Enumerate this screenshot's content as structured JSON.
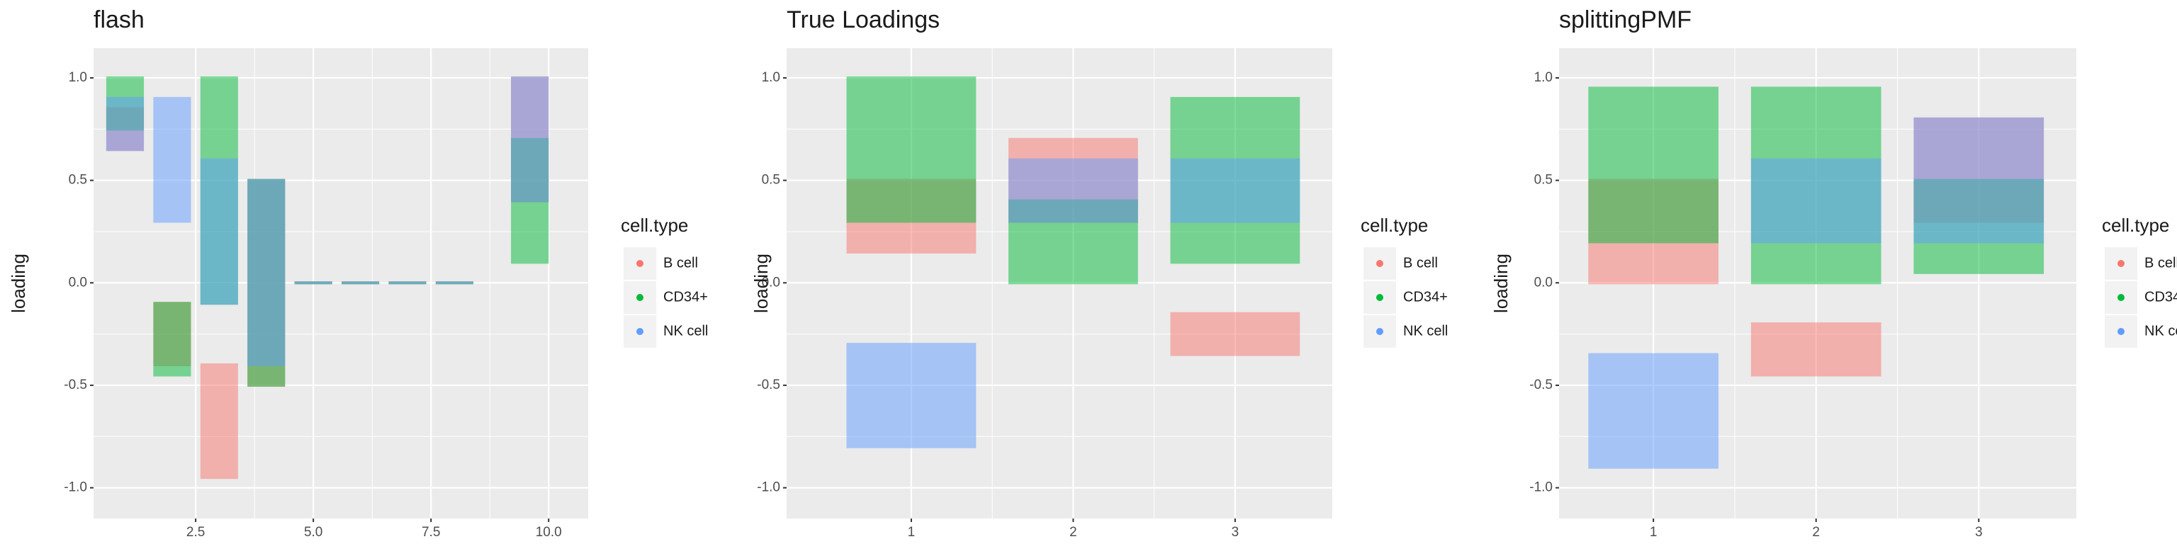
{
  "chart_data": [
    {
      "type": "strip",
      "title": "flash",
      "y_label": "loading",
      "legend_title": "cell.type",
      "xlim": [
        0.33,
        10.84
      ],
      "ylim": [
        -1.15,
        1.145
      ],
      "xticks": [
        2.5,
        {
          "value": 5,
          "label": "5.0"
        },
        7.5,
        {
          "value": 10,
          "label": "10.0"
        }
      ],
      "yticks": [
        {
          "value": -1,
          "label": "-1.0"
        },
        -0.5,
        {
          "value": 0,
          "label": "0.0"
        },
        0.5,
        {
          "value": 1,
          "label": "1.0"
        }
      ],
      "grid": true,
      "series": [
        {
          "name": "B cell",
          "color": "#F8766D",
          "x": [
            1,
            2,
            3,
            4,
            5,
            6,
            7,
            8,
            9.6
          ],
          "ymin": [
            0.65,
            -0.4,
            -0.95,
            -0.5,
            0,
            0,
            0,
            0,
            0.4
          ],
          "ymax": [
            0.85,
            -0.1,
            -0.4,
            0.5,
            0,
            0,
            0,
            0,
            1.0
          ]
        },
        {
          "name": "CD34+",
          "color": "#00BA38",
          "x": [
            1,
            2,
            3,
            4,
            5,
            6,
            7,
            8,
            9.6
          ],
          "ymin": [
            0.75,
            -0.45,
            -0.1,
            -0.5,
            0,
            0,
            0,
            0,
            0.1
          ],
          "ymax": [
            1.0,
            -0.1,
            1.0,
            0.5,
            0,
            0,
            0,
            0,
            0.7
          ]
        },
        {
          "name": "NK cell",
          "color": "#619CFF",
          "x": [
            1,
            2,
            3,
            4,
            5,
            6,
            7,
            8,
            9.6
          ],
          "ymin": [
            0.65,
            0.3,
            -0.1,
            -0.4,
            0,
            0,
            0,
            0,
            0.4
          ],
          "ymax": [
            0.9,
            0.9,
            0.6,
            0.5,
            0,
            0,
            0,
            0,
            1.0
          ]
        }
      ]
    },
    {
      "type": "strip",
      "title": "True Loadings",
      "y_label": "loading",
      "legend_title": "cell.type",
      "xlim": [
        0.23,
        3.6
      ],
      "ylim": [
        -1.15,
        1.145
      ],
      "xticks": [
        1,
        2,
        3
      ],
      "yticks": [
        {
          "value": -1,
          "label": "-1.0"
        },
        -0.5,
        {
          "value": 0,
          "label": "0.0"
        },
        0.5,
        {
          "value": 1,
          "label": "1.0"
        }
      ],
      "grid": true,
      "series": [
        {
          "name": "B cell",
          "color": "#F8766D",
          "x": [
            1,
            2,
            3
          ],
          "ymin": [
            0.15,
            0.3,
            -0.35
          ],
          "ymax": [
            0.5,
            0.7,
            -0.15
          ]
        },
        {
          "name": "CD34+",
          "color": "#00BA38",
          "x": [
            1,
            2,
            3
          ],
          "ymin": [
            0.3,
            0.0,
            0.1
          ],
          "ymax": [
            1.0,
            0.4,
            0.9
          ]
        },
        {
          "name": "NK cell",
          "color": "#619CFF",
          "x": [
            1,
            2,
            3
          ],
          "ymin": [
            -0.8,
            0.3,
            0.3
          ],
          "ymax": [
            -0.3,
            0.6,
            0.6
          ]
        }
      ]
    },
    {
      "type": "strip",
      "title": "splittingPMF",
      "y_label": "loading",
      "legend_title": "cell.type",
      "xlim": [
        0.42,
        3.6
      ],
      "ylim": [
        -1.15,
        1.145
      ],
      "xticks": [
        1,
        2,
        3
      ],
      "yticks": [
        {
          "value": -1,
          "label": "-1.0"
        },
        -0.5,
        {
          "value": 0,
          "label": "0.0"
        },
        0.5,
        {
          "value": 1,
          "label": "1.0"
        }
      ],
      "grid": true,
      "series": [
        {
          "name": "B cell",
          "color": "#F8766D",
          "x": [
            1,
            2,
            3
          ],
          "ymin": [
            0.0,
            -0.45,
            0.3
          ],
          "ymax": [
            0.5,
            -0.2,
            0.8
          ]
        },
        {
          "name": "CD34+",
          "color": "#00BA38",
          "x": [
            1,
            2,
            3
          ],
          "ymin": [
            0.2,
            0.0,
            0.05
          ],
          "ymax": [
            0.95,
            0.95,
            0.5
          ]
        },
        {
          "name": "NK cell",
          "color": "#619CFF",
          "x": [
            1,
            2,
            3
          ],
          "ymin": [
            -0.9,
            0.2,
            0.2
          ],
          "ymax": [
            -0.35,
            0.6,
            0.8
          ]
        }
      ]
    }
  ]
}
